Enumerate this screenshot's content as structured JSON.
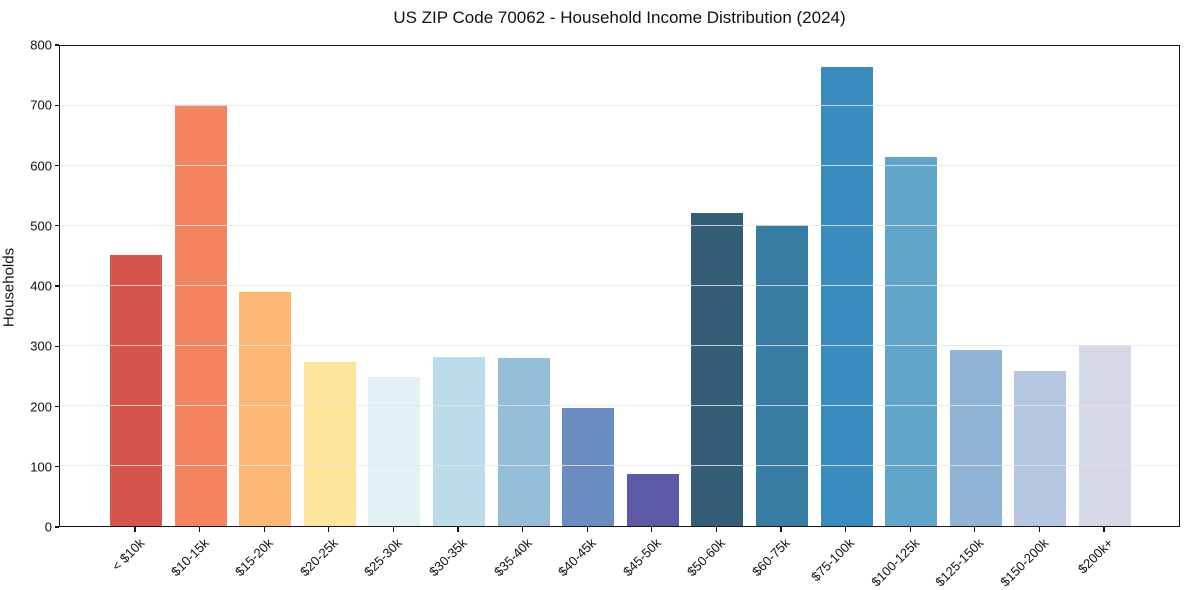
{
  "chart_data": {
    "type": "bar",
    "title": "US ZIP Code 70062 - Household Income Distribution (2024)",
    "xlabel": "",
    "ylabel": "Households",
    "ylim": [
      0,
      800
    ],
    "ytick_step": 100,
    "ytick_labels": [
      "0",
      "100",
      "200",
      "300",
      "400",
      "500",
      "600",
      "700",
      "800"
    ],
    "grid": true,
    "legend": "none",
    "categories": [
      "< $10k",
      "$10-15k",
      "$15-20k",
      "$20-25k",
      "$25-30k",
      "$30-35k",
      "$35-40k",
      "$40-45k",
      "$45-50k",
      "$50-60k",
      "$60-75k",
      "$75-100k",
      "$100-125k",
      "$125-150k",
      "$150-200k",
      "$200k+"
    ],
    "values": [
      452,
      702,
      390,
      273,
      248,
      281,
      280,
      197,
      87,
      521,
      501,
      765,
      615,
      294,
      258,
      302
    ],
    "bar_colors": [
      "#d6544c",
      "#f4855f",
      "#fbb875",
      "#fde59c",
      "#e1f1f4",
      "#badde9",
      "#94bdd8",
      "#6a8dc1",
      "#5c5aa6",
      "#345d76",
      "#377ca3",
      "#388cbe",
      "#5fa6ca",
      "#90b4d6",
      "#b5c7e0",
      "#d5d8e7"
    ],
    "axis_color": "#151515",
    "grid_color": "#e7e7e7",
    "background": "#ffffff"
  }
}
